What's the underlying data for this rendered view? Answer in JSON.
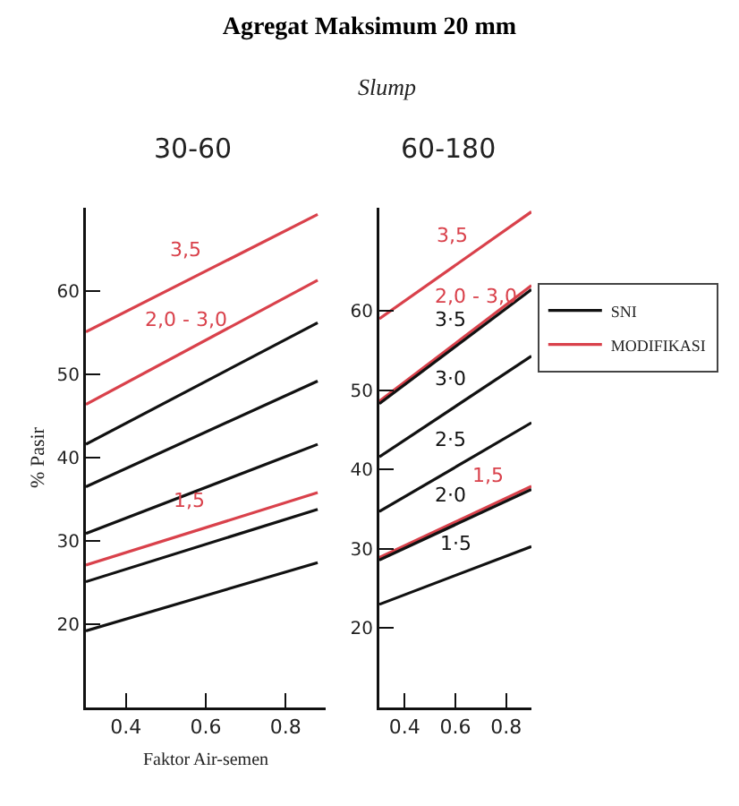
{
  "chart_data": [
    {
      "type": "line",
      "title": "Agregat Maksimum 20 mm",
      "subtitle": "30-60",
      "xlabel": "Faktor Air-semen",
      "ylabel": "% Pasir",
      "xlim": [
        0.3,
        0.9
      ],
      "ylim": [
        10,
        70
      ],
      "xticks": [
        0.4,
        0.6,
        0.8
      ],
      "yticks": [
        20,
        30,
        40,
        50,
        60
      ],
      "grid": false,
      "legend": false,
      "series": [
        {
          "color": "#d9414b",
          "x": [
            0.3,
            0.88
          ],
          "values": [
            55.1,
            69.2
          ]
        },
        {
          "color": "#d9414b",
          "x": [
            0.3,
            0.88
          ],
          "values": [
            46.4,
            61.3
          ]
        },
        {
          "color": "#111111",
          "x": [
            0.3,
            0.88
          ],
          "values": [
            41.6,
            56.2
          ]
        },
        {
          "color": "#111111",
          "x": [
            0.3,
            0.88
          ],
          "values": [
            36.5,
            49.2
          ]
        },
        {
          "color": "#111111",
          "x": [
            0.3,
            0.88
          ],
          "values": [
            30.9,
            41.6
          ]
        },
        {
          "color": "#d9414b",
          "x": [
            0.3,
            0.88
          ],
          "values": [
            27.1,
            35.8
          ]
        },
        {
          "color": "#111111",
          "x": [
            0.3,
            0.88
          ],
          "values": [
            25.1,
            33.8
          ]
        },
        {
          "color": "#111111",
          "x": [
            0.3,
            0.88
          ],
          "values": [
            19.2,
            27.4
          ]
        }
      ],
      "annotations": [
        {
          "text": "3,5",
          "x": 0.55,
          "y": 61.2
        },
        {
          "text": "2,0 - 3,0",
          "x": 0.55,
          "y": 52.8
        },
        {
          "text": "1,5",
          "x": 0.56,
          "y": 31.0
        }
      ]
    },
    {
      "type": "line",
      "subtitle": "60-180",
      "xlim": [
        0.3,
        0.9
      ],
      "ylim": [
        10,
        73
      ],
      "xticks": [
        0.4,
        0.6,
        0.8
      ],
      "yticks": [
        20,
        30,
        40,
        50,
        60
      ],
      "grid": false,
      "legend": "right",
      "series": [
        {
          "name": "MODIFIKASI",
          "color": "#d9414b",
          "x": [
            0.3,
            0.9
          ],
          "values": [
            59.0,
            72.5
          ]
        },
        {
          "color": "#d9414b",
          "x": [
            0.3,
            0.9
          ],
          "values": [
            48.6,
            63.2
          ]
        },
        {
          "name": "SNI",
          "color": "#111111",
          "x": [
            0.3,
            0.9
          ],
          "values": [
            48.3,
            62.7
          ]
        },
        {
          "color": "#111111",
          "x": [
            0.3,
            0.9
          ],
          "values": [
            41.6,
            54.3
          ]
        },
        {
          "color": "#111111",
          "x": [
            0.3,
            0.9
          ],
          "values": [
            34.7,
            45.9
          ]
        },
        {
          "color": "#d9414b",
          "x": [
            0.3,
            0.9
          ],
          "values": [
            28.9,
            37.9
          ]
        },
        {
          "color": "#111111",
          "x": [
            0.3,
            0.9
          ],
          "values": [
            28.6,
            37.5
          ]
        },
        {
          "color": "#111111",
          "x": [
            0.3,
            0.9
          ],
          "values": [
            23.0,
            30.3
          ]
        }
      ],
      "annotations": [
        "Slump",
        {
          "text": "3,5",
          "x": 0.59,
          "y": 65.5
        },
        {
          "text": "2,0 - 3,0",
          "x": 0.68,
          "y": 57.9
        },
        {
          "text": "3·5",
          "x": 0.58,
          "y": 55.0
        },
        {
          "text": "3·0",
          "x": 0.58,
          "y": 47.5
        },
        {
          "text": "2·5",
          "x": 0.58,
          "y": 39.9
        },
        {
          "text": "2·0",
          "x": 0.58,
          "y": 32.8
        },
        {
          "text": "1,5",
          "x": 0.73,
          "y": 35.4
        },
        {
          "text": "1·5",
          "x": 0.6,
          "y": 26.7
        }
      ]
    }
  ]
}
